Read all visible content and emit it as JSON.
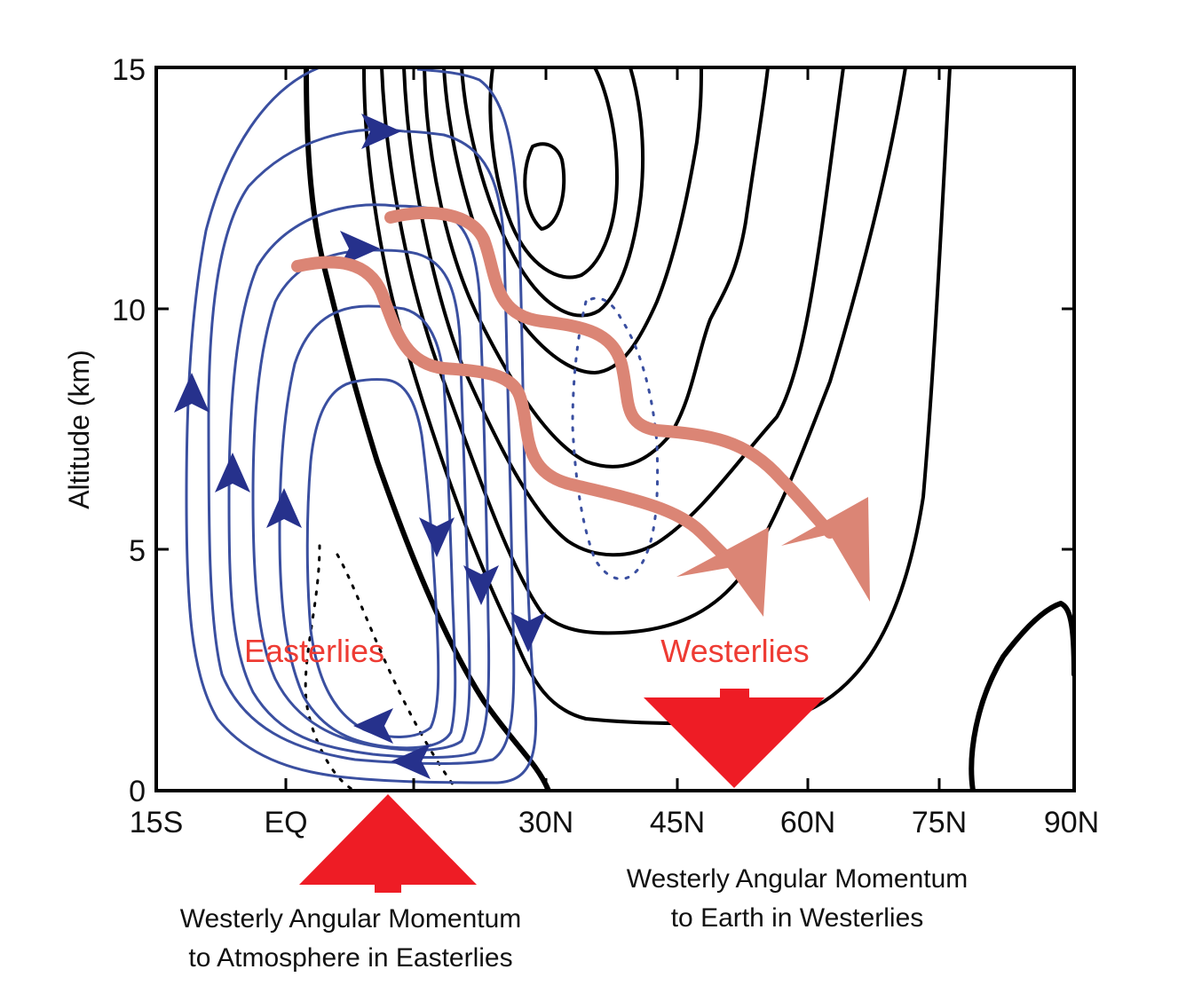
{
  "axes": {
    "ylabel": "Altitude (km)",
    "xticks": [
      "15S",
      "EQ",
      "",
      "30N",
      "45N",
      "60N",
      "75N",
      "90N"
    ],
    "yticks": [
      "0",
      "5",
      "10",
      "15"
    ],
    "xlim": [
      "15S",
      "90N"
    ],
    "ylim": [
      0,
      15
    ]
  },
  "labels": {
    "easterlies": "Easterlies",
    "westerlies": "Westerlies"
  },
  "captions": {
    "left_line1": "Westerly Angular Momentum",
    "left_line2": "to Atmosphere in Easterlies",
    "right_line1": "Westerly Angular Momentum",
    "right_line2": "to Earth in Westerlies"
  },
  "colors": {
    "streamline": "#3a4fa0",
    "streamline_arrow": "#26318c",
    "wind_contour": "#000000",
    "momentum_flux": "#db8575",
    "momentum_arrow": "#ee1c25",
    "label_red": "#ee3b33"
  }
}
